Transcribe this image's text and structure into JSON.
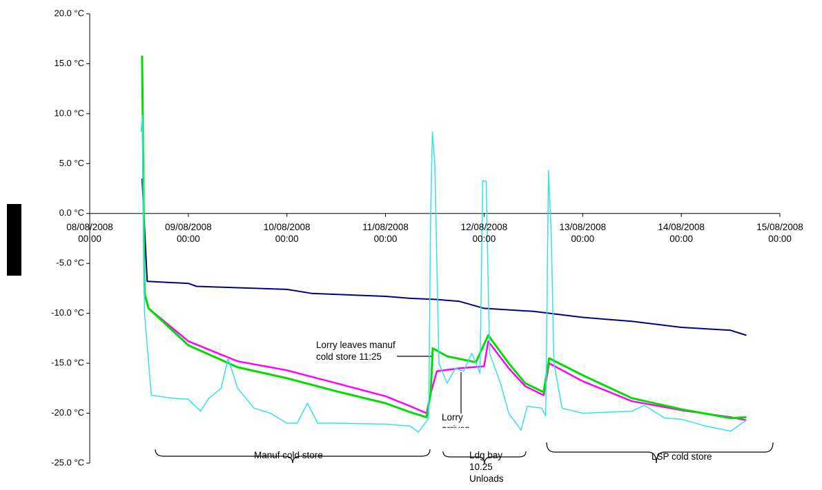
{
  "chart_data": {
    "type": "line",
    "xlim": [
      "2008-08-08T00:00",
      "2008-08-15T00:00"
    ],
    "xticks": [
      {
        "value": "2008-08-08T00:00",
        "label": "08/08/2008 00:00"
      },
      {
        "value": "2008-08-09T00:00",
        "label": "09/08/2008 00:00"
      },
      {
        "value": "2008-08-10T00:00",
        "label": "10/08/2008 00:00"
      },
      {
        "value": "2008-08-11T00:00",
        "label": "11/08/2008 00:00"
      },
      {
        "value": "2008-08-12T00:00",
        "label": "12/08/2008 00:00"
      },
      {
        "value": "2008-08-13T00:00",
        "label": "13/08/2008 00:00"
      },
      {
        "value": "2008-08-14T00:00",
        "label": "14/08/2008 00:00"
      },
      {
        "value": "2008-08-15T00:00",
        "label": "15/08/2008 00:00"
      }
    ],
    "ylim": [
      -25,
      20
    ],
    "yticks": [
      {
        "value": 20,
        "label": "20.0 °C"
      },
      {
        "value": 15,
        "label": "15.0 °C"
      },
      {
        "value": 10,
        "label": "10.0 °C"
      },
      {
        "value": 5,
        "label": "5.0 °C"
      },
      {
        "value": 0,
        "label": "0.0 °C"
      },
      {
        "value": -5,
        "label": "-5.0 °C"
      },
      {
        "value": -10,
        "label": "-10.0 °C"
      },
      {
        "value": -15,
        "label": "-15.0 °C"
      },
      {
        "value": -20,
        "label": "-20.0 °C"
      },
      {
        "value": -25,
        "label": "-25.0 °C"
      }
    ],
    "series": [
      {
        "color": "#000080",
        "width": 2,
        "x": [
          "2008-08-08T12:45",
          "2008-08-08T14:00",
          "2008-08-09T00:00",
          "2008-08-09T02:00",
          "2008-08-10T00:00",
          "2008-08-10T06:00",
          "2008-08-11T00:00",
          "2008-08-11T06:00",
          "2008-08-11T12:00",
          "2008-08-11T18:00",
          "2008-08-12T00:00",
          "2008-08-12T12:00",
          "2008-08-13T00:00",
          "2008-08-13T12:00",
          "2008-08-14T00:00",
          "2008-08-14T12:00",
          "2008-08-14T15:50"
        ],
        "values": [
          3.5,
          -6.8,
          -7.0,
          -7.3,
          -7.6,
          -8.0,
          -8.3,
          -8.5,
          -8.6,
          -8.8,
          -9.5,
          -9.8,
          -10.4,
          -10.8,
          -11.4,
          -11.7,
          -12.2
        ]
      },
      {
        "color": "#ff00ff",
        "width": 2.5,
        "x": [
          "2008-08-08T12:45",
          "2008-08-08T13:20",
          "2008-08-08T14:20",
          "2008-08-09T00:00",
          "2008-08-09T12:00",
          "2008-08-10T00:00",
          "2008-08-10T12:00",
          "2008-08-11T00:00",
          "2008-08-11T06:00",
          "2008-08-11T10:00",
          "2008-08-11T11:00",
          "2008-08-11T12:30",
          "2008-08-11T18:00",
          "2008-08-12T00:00",
          "2008-08-12T01:00",
          "2008-08-12T06:00",
          "2008-08-12T10:00",
          "2008-08-12T14:30",
          "2008-08-12T15:50",
          "2008-08-13T00:00",
          "2008-08-13T12:00",
          "2008-08-14T00:00",
          "2008-08-14T12:00",
          "2008-08-14T15:50"
        ],
        "values": [
          15.8,
          -8.0,
          -9.5,
          -12.8,
          -14.8,
          -15.7,
          -17.0,
          -18.3,
          -19.3,
          -20.0,
          -18.0,
          -15.8,
          -15.5,
          -15.3,
          -12.8,
          -15.5,
          -17.3,
          -18.2,
          -15.0,
          -16.8,
          -18.8,
          -19.7,
          -20.4,
          -20.7
        ]
      },
      {
        "color": "#00dd00",
        "width": 3,
        "x": [
          "2008-08-08T12:45",
          "2008-08-08T13:20",
          "2008-08-08T14:20",
          "2008-08-09T00:00",
          "2008-08-09T12:00",
          "2008-08-10T00:00",
          "2008-08-10T12:00",
          "2008-08-11T00:00",
          "2008-08-11T06:00",
          "2008-08-11T10:00",
          "2008-08-11T11:00",
          "2008-08-11T11:30",
          "2008-08-11T15:00",
          "2008-08-11T22:00",
          "2008-08-12T01:00",
          "2008-08-12T06:00",
          "2008-08-12T10:00",
          "2008-08-12T14:30",
          "2008-08-12T15:50",
          "2008-08-13T00:00",
          "2008-08-13T12:00",
          "2008-08-14T00:00",
          "2008-08-14T12:00",
          "2008-08-14T15:50"
        ],
        "values": [
          15.8,
          -8.0,
          -9.5,
          -13.2,
          -15.4,
          -16.5,
          -17.8,
          -19.0,
          -19.9,
          -20.4,
          -18.0,
          -13.5,
          -14.3,
          -14.9,
          -12.2,
          -15.0,
          -17.0,
          -17.9,
          -14.5,
          -16.2,
          -18.5,
          -19.6,
          -20.5,
          -20.4
        ]
      },
      {
        "color": "#33e0f0",
        "width": 1.5,
        "x": [
          "2008-08-08T12:30",
          "2008-08-08T12:50",
          "2008-08-08T13:20",
          "2008-08-08T15:00",
          "2008-08-08T20:00",
          "2008-08-09T00:00",
          "2008-08-09T03:00",
          "2008-08-09T05:00",
          "2008-08-09T08:00",
          "2008-08-09T09:40",
          "2008-08-09T12:00",
          "2008-08-09T16:00",
          "2008-08-09T20:00",
          "2008-08-10T00:00",
          "2008-08-10T02:30",
          "2008-08-10T05:00",
          "2008-08-10T07:30",
          "2008-08-10T12:00",
          "2008-08-11T00:00",
          "2008-08-11T06:00",
          "2008-08-11T08:00",
          "2008-08-11T10:30",
          "2008-08-11T11:00",
          "2008-08-11T11:25",
          "2008-08-11T12:00",
          "2008-08-11T13:00",
          "2008-08-11T15:00",
          "2008-08-11T17:00",
          "2008-08-11T19:00",
          "2008-08-11T21:00",
          "2008-08-11T23:00",
          "2008-08-11T23:40",
          "2008-08-12T00:30",
          "2008-08-12T01:20",
          "2008-08-12T04:00",
          "2008-08-12T06:00",
          "2008-08-12T09:00",
          "2008-08-12T10:30",
          "2008-08-12T14:00",
          "2008-08-12T15:00",
          "2008-08-12T15:40",
          "2008-08-12T16:20",
          "2008-08-12T17:00",
          "2008-08-12T19:00",
          "2008-08-13T00:00",
          "2008-08-13T12:00",
          "2008-08-13T15:00",
          "2008-08-13T20:00",
          "2008-08-14T00:00",
          "2008-08-14T06:00",
          "2008-08-14T12:00",
          "2008-08-14T15:50"
        ],
        "values": [
          8.2,
          9.8,
          -10.0,
          -18.2,
          -18.5,
          -18.6,
          -19.8,
          -18.5,
          -17.5,
          -14.5,
          -17.5,
          -19.5,
          -20.0,
          -21.0,
          -21.0,
          -19.0,
          -21.0,
          -21.0,
          -21.1,
          -21.3,
          -21.9,
          -20.5,
          0,
          8.2,
          5,
          -15.0,
          -17.0,
          -15.5,
          -15.8,
          -14.0,
          -16.0,
          3.3,
          3.2,
          -14.0,
          -17.0,
          -20.0,
          -21.7,
          -19.3,
          -19.5,
          -20.3,
          4.3,
          -2.0,
          -15.0,
          -19.5,
          -20.0,
          -19.8,
          -19.2,
          -20.5,
          -20.6,
          -21.3,
          -21.8,
          -20.7
        ]
      }
    ],
    "annotations": [
      "Lorry leaves manuf cold store 11:25",
      "Lorry arrives",
      "Manuf cold store",
      "Ldg bay 10.25 Unloads",
      "LSP cold store"
    ]
  }
}
